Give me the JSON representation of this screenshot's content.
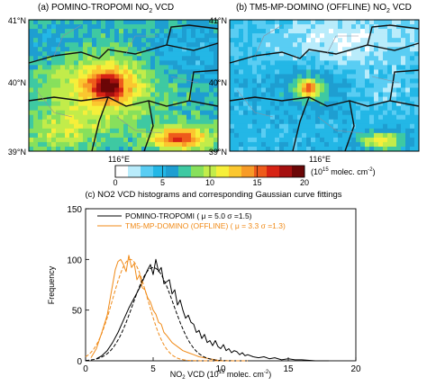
{
  "maps": {
    "a": {
      "title_main": "(a) POMINO-TROPOMI NO",
      "title_tail": " VCD",
      "lat_top": "41",
      "lat_mid": "40",
      "lat_bot": "39",
      "lat_unit": "°N",
      "lon": "116",
      "lon_unit": "°E"
    },
    "b": {
      "title_main": "(b) TM5-MP-DOMINO (OFFLINE) NO",
      "title_tail": " VCD",
      "lat_top": "41",
      "lat_mid": "40",
      "lat_bot": "39",
      "lat_unit": "°N",
      "lon": "116",
      "lon_unit": "°E"
    },
    "sub2": "2"
  },
  "colorbar": {
    "ticks": [
      "0",
      "5",
      "10",
      "15",
      "20"
    ],
    "unit_open": "(10",
    "unit_exp": "15",
    "unit_mid": " molec. cm",
    "unit_exp2": "-2",
    "unit_close": ")",
    "colors": [
      "#ffffff",
      "#b9ecfb",
      "#59cdf3",
      "#23b7e6",
      "#1e9ed1",
      "#3ec9a2",
      "#87e05c",
      "#c2ec4a",
      "#f6ef3a",
      "#fbc72f",
      "#f79b27",
      "#ee5b1b",
      "#d72314",
      "#a50f0f",
      "#6b0606"
    ]
  },
  "chart_data": {
    "type": "line",
    "title": "(c) NO2 VCD histograms and corresponding Gaussian curve fittings",
    "xlabel": "NO2 VCD (10^15 molec. cm^-2)",
    "ylabel": "Frequency",
    "xlim": [
      0,
      20
    ],
    "ylim": [
      0,
      150
    ],
    "xticks": [
      0,
      5,
      10,
      15,
      20
    ],
    "yticks": [
      0,
      50,
      100,
      150
    ],
    "legend_position": "top-center",
    "colors": {
      "pomino": "#000000",
      "tm5": "#f08a17"
    },
    "series": [
      {
        "name": "POMINO-TROPOMI",
        "legend_label": "POMINO-TROPOMI ( μ = 5.0  σ =1.5)",
        "style": "histogram",
        "x": [
          0.8,
          1.2,
          1.6,
          2.0,
          2.4,
          2.8,
          3.2,
          3.6,
          4.0,
          4.4,
          4.6,
          4.8,
          5.0,
          5.2,
          5.4,
          5.6,
          5.8,
          6.0,
          6.2,
          6.4,
          6.6,
          6.8,
          7.0,
          7.2,
          7.4,
          7.6,
          7.8,
          8.0,
          8.2,
          8.4,
          8.6,
          8.8,
          9.0,
          9.2,
          9.4,
          9.6,
          9.8,
          10.0,
          10.2,
          10.4,
          10.6,
          10.8,
          11.0,
          11.2,
          11.4,
          11.6,
          11.8,
          12.0,
          12.4,
          12.8,
          13.2,
          13.6,
          14.0,
          14.5,
          15.0,
          15.5,
          16.0,
          17.0,
          18.0
        ],
        "y": [
          2,
          5,
          10,
          18,
          28,
          40,
          52,
          62,
          72,
          84,
          90,
          95,
          85,
          100,
          88,
          92,
          76,
          78,
          80,
          66,
          70,
          55,
          60,
          50,
          42,
          45,
          38,
          36,
          28,
          30,
          22,
          26,
          18,
          20,
          15,
          20,
          14,
          12,
          16,
          10,
          12,
          8,
          10,
          9,
          6,
          8,
          5,
          6,
          4,
          3,
          4,
          2,
          3,
          1,
          2,
          1,
          1,
          0,
          0
        ]
      },
      {
        "name": "TM5-MP-DOMINO (OFFLINE)",
        "legend_label": "TM5-MP-DOMINO (OFFLINE) ( μ = 3.3  σ =1.3)",
        "style": "histogram",
        "x": [
          0.4,
          0.8,
          1.2,
          1.6,
          1.8,
          2.0,
          2.2,
          2.4,
          2.6,
          2.8,
          3.0,
          3.2,
          3.4,
          3.6,
          3.8,
          4.0,
          4.2,
          4.4,
          4.6,
          4.8,
          5.0,
          5.2,
          5.4,
          5.6,
          5.8,
          6.0,
          6.4,
          6.8,
          7.2,
          7.6,
          8.0,
          8.4,
          8.8,
          9.2,
          9.6,
          10.0
        ],
        "y": [
          3,
          12,
          28,
          45,
          60,
          75,
          90,
          98,
          100,
          95,
          88,
          104,
          92,
          96,
          80,
          85,
          72,
          70,
          62,
          58,
          50,
          46,
          38,
          36,
          28,
          25,
          18,
          14,
          10,
          8,
          6,
          4,
          3,
          2,
          1,
          0
        ]
      },
      {
        "name": "POMINO-TROPOMI Gaussian fit",
        "style": "dashed",
        "mu": 5.0,
        "sigma": 1.5,
        "peak": 92
      },
      {
        "name": "TM5-MP-DOMINO (OFFLINE) Gaussian fit",
        "style": "dashed",
        "mu": 3.3,
        "sigma": 1.3,
        "peak": 100
      }
    ]
  }
}
